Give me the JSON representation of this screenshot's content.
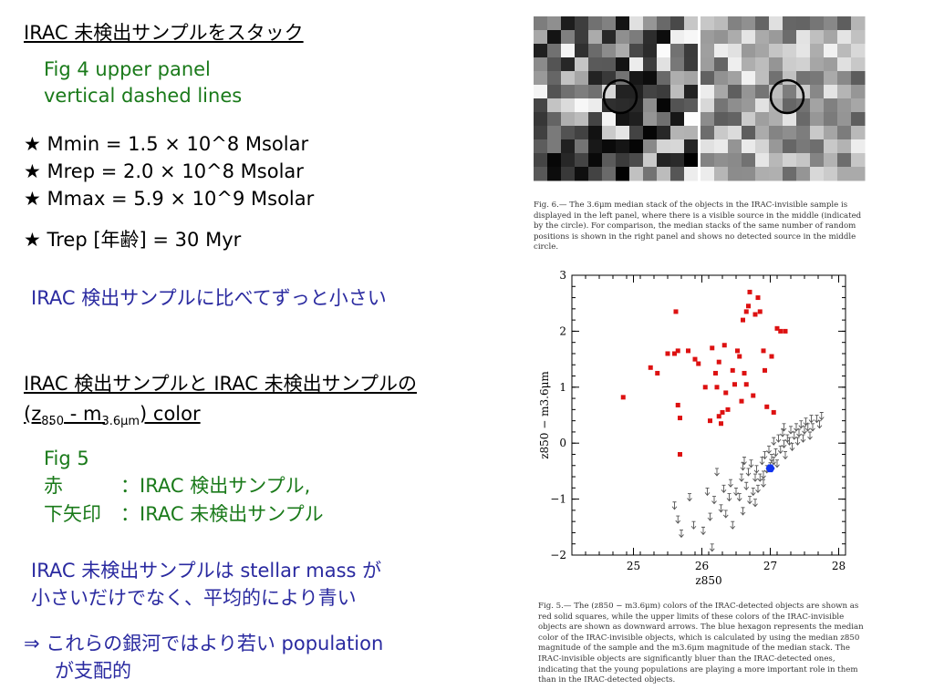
{
  "left": {
    "heading1": "IRAC 未検出サンプルをスタック",
    "fig4_line1": "Fig 4 upper panel",
    "fig4_line2": "vertical dashed lines",
    "params": [
      "★ Mmin = 1.5 × 10^8 Msolar",
      "★ Mrep = 2.0 × 10^8 Msolar",
      "★ Mmax = 5.9 × 10^9 Msolar",
      "★ Trep [年齢] = 30 Myr"
    ],
    "note1": "IRAC 検出サンプルに比べてずっと小さい",
    "heading2_line1": "IRAC 検出サンプルと IRAC 未検出サンプルの",
    "heading2_line2_prefix": "(z",
    "heading2_line2_sub1": "850",
    "heading2_line2_mid": " - m",
    "heading2_line2_sub2": "3.6μm",
    "heading2_line2_suffix": ") color",
    "fig5_title": "Fig 5",
    "fig5_red_label": "赤",
    "fig5_red_text": "：IRAC 検出サンプル,",
    "fig5_arrow_label": "下矢印",
    "fig5_arrow_text": "：IRAC 未検出サンプル",
    "note2_line1": "IRAC 未検出サンプルは stellar mass が",
    "note2_line2": "小さいだけでなく、平均的により青い",
    "conclusion_line1": "⇒ これらの銀河ではより若い population",
    "conclusion_line2": "が支配的"
  },
  "fig6": {
    "caption": "Fig. 6.— The 3.6μm median stack of the objects in the IRAC-invisible sample is displayed in the left panel, where there is a visible source in the middle (indicated by the circle). For comparison, the median stacks of the same number of random positions is shown in the right panel and shows no detected source in the middle circle."
  },
  "fig5": {
    "caption": "Fig. 5.— The (z850 − m3.6μm) colors of the IRAC-detected objects are shown as red solid squares, while the upper limits of these colors of the IRAC-invisible objects are shown as downward arrows. The blue hexagon represents the median color of the IRAC-invisible objects, which is calculated by using the median z850 magnitude of the sample and the m3.6μm magnitude of the median stack. The IRAC-invisible objects are significantly bluer than the IRAC-detected ones, indicating that the young populations are playing a more important role in them than in the IRAC-detected objects."
  },
  "chart_data": {
    "type": "scatter",
    "xlabel": "z850",
    "ylabel": "z850 − m3.6μm",
    "xlim": [
      24.1,
      28.1
    ],
    "ylim": [
      -2,
      3
    ],
    "xticks": [
      25,
      26,
      27,
      28
    ],
    "yticks": [
      -2,
      -1,
      0,
      1,
      2,
      3
    ],
    "colors": {
      "detected": "#dd1111",
      "median": "#1133ee",
      "upper_limit": "#555555"
    },
    "series": [
      {
        "marker": "square",
        "points": [
          [
            24.85,
            0.82
          ],
          [
            25.25,
            1.35
          ],
          [
            25.35,
            1.25
          ],
          [
            25.5,
            1.6
          ],
          [
            25.6,
            1.6
          ],
          [
            25.62,
            2.35
          ],
          [
            25.65,
            1.65
          ],
          [
            25.65,
            0.68
          ],
          [
            25.68,
            0.45
          ],
          [
            25.68,
            -0.2
          ],
          [
            25.8,
            1.65
          ],
          [
            25.9,
            1.5
          ],
          [
            25.95,
            1.42
          ],
          [
            26.05,
            1.0
          ],
          [
            26.12,
            0.4
          ],
          [
            26.15,
            1.7
          ],
          [
            26.2,
            1.25
          ],
          [
            26.22,
            1.0
          ],
          [
            26.25,
            1.45
          ],
          [
            26.25,
            0.48
          ],
          [
            26.28,
            0.35
          ],
          [
            26.3,
            0.55
          ],
          [
            26.33,
            1.75
          ],
          [
            26.35,
            0.9
          ],
          [
            26.38,
            0.6
          ],
          [
            26.45,
            1.3
          ],
          [
            26.48,
            1.05
          ],
          [
            26.52,
            1.65
          ],
          [
            26.55,
            1.55
          ],
          [
            26.58,
            0.75
          ],
          [
            26.6,
            2.2
          ],
          [
            26.62,
            1.25
          ],
          [
            26.65,
            1.05
          ],
          [
            26.65,
            2.35
          ],
          [
            26.68,
            2.45
          ],
          [
            26.7,
            2.7
          ],
          [
            26.75,
            0.85
          ],
          [
            26.78,
            2.3
          ],
          [
            26.82,
            2.6
          ],
          [
            26.85,
            2.35
          ],
          [
            26.9,
            1.65
          ],
          [
            26.92,
            1.3
          ],
          [
            26.95,
            0.65
          ],
          [
            27.02,
            1.55
          ],
          [
            27.05,
            0.55
          ],
          [
            27.1,
            2.05
          ],
          [
            27.15,
            2.0
          ],
          [
            27.22,
            2.0
          ]
        ]
      },
      {
        "marker": "down-arrow",
        "points": [
          [
            25.6,
            -1.1
          ],
          [
            25.65,
            -1.35
          ],
          [
            25.82,
            -0.95
          ],
          [
            25.88,
            -1.45
          ],
          [
            26.02,
            -1.55
          ],
          [
            26.08,
            -0.85
          ],
          [
            26.12,
            -1.3
          ],
          [
            26.18,
            -1.0
          ],
          [
            26.22,
            -0.5
          ],
          [
            26.28,
            -1.15
          ],
          [
            26.32,
            -0.8
          ],
          [
            26.35,
            -1.25
          ],
          [
            26.42,
            -0.7
          ],
          [
            26.45,
            -1.45
          ],
          [
            26.5,
            -0.85
          ],
          [
            26.55,
            -0.95
          ],
          [
            26.58,
            -0.6
          ],
          [
            26.6,
            -1.2
          ],
          [
            26.62,
            -0.3
          ],
          [
            26.65,
            -0.75
          ],
          [
            26.68,
            -0.5
          ],
          [
            26.7,
            -1.0
          ],
          [
            26.72,
            -0.35
          ],
          [
            26.75,
            -0.85
          ],
          [
            26.78,
            -0.6
          ],
          [
            26.8,
            -0.45
          ],
          [
            26.82,
            -0.8
          ],
          [
            26.85,
            -0.6
          ],
          [
            26.88,
            -0.3
          ],
          [
            26.9,
            -0.55
          ],
          [
            26.92,
            -0.2
          ],
          [
            26.95,
            -0.45
          ],
          [
            26.98,
            -0.1
          ],
          [
            27.0,
            -0.4
          ],
          [
            27.02,
            -0.25
          ],
          [
            27.05,
            0.05
          ],
          [
            27.08,
            -0.15
          ],
          [
            27.1,
            -0.35
          ],
          [
            27.12,
            0.1
          ],
          [
            27.15,
            -0.1
          ],
          [
            27.18,
            0.2
          ],
          [
            27.2,
            0.0
          ],
          [
            27.22,
            -0.2
          ],
          [
            27.25,
            0.1
          ],
          [
            27.28,
            0.05
          ],
          [
            27.3,
            0.25
          ],
          [
            27.32,
            -0.05
          ],
          [
            27.35,
            0.15
          ],
          [
            27.38,
            0.3
          ],
          [
            27.4,
            0.05
          ],
          [
            27.42,
            0.2
          ],
          [
            27.45,
            0.35
          ],
          [
            27.48,
            0.1
          ],
          [
            27.5,
            0.25
          ],
          [
            27.52,
            0.4
          ],
          [
            27.55,
            0.3
          ],
          [
            27.58,
            0.15
          ],
          [
            27.6,
            0.45
          ],
          [
            27.62,
            0.3
          ],
          [
            27.68,
            0.45
          ],
          [
            27.72,
            0.35
          ],
          [
            27.75,
            0.5
          ],
          [
            26.15,
            -1.85
          ],
          [
            25.7,
            -1.6
          ],
          [
            26.4,
            -0.95
          ],
          [
            26.6,
            -0.4
          ],
          [
            27.05,
            -0.3
          ],
          [
            27.2,
            0.3
          ],
          [
            26.9,
            -0.7
          ],
          [
            26.78,
            -1.05
          ]
        ]
      },
      {
        "marker": "hexagon",
        "points": [
          [
            27.0,
            -0.45
          ]
        ]
      }
    ]
  }
}
